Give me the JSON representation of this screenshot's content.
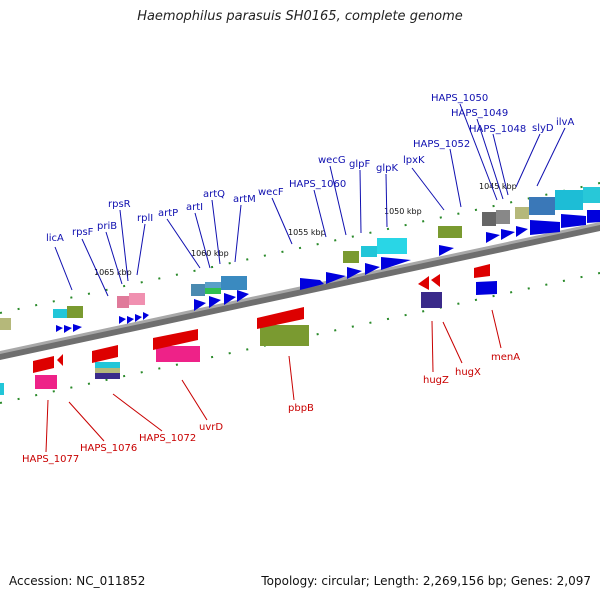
{
  "title": "Haemophilus parasuis SH0165, complete genome",
  "footer": {
    "accession": "Accession: NC_011852",
    "topology": "Topology: circular; Length: 2,269,156 bp; Genes: 2,097"
  },
  "kbp_marks": [
    "1065 kbp",
    "1060 kbp",
    "1055 kbp",
    "1050 kbp",
    "1045 kbp"
  ],
  "forward_genes": [
    "licA",
    "rpsF",
    "priB",
    "rpsR",
    "rplI",
    "artP",
    "artI",
    "artQ",
    "artM",
    "wecF",
    "HAPS_1060",
    "wecG",
    "glpF",
    "glpK",
    "lpxK",
    "HAPS_1052",
    "HAPS_1050",
    "HAPS_1049",
    "HAPS_1048",
    "slyD",
    "ilvA"
  ],
  "reverse_genes": [
    "HAPS_1077",
    "HAPS_1076",
    "HAPS_1072",
    "uvrD",
    "pbpB",
    "hugZ",
    "hugX",
    "menA"
  ],
  "colors": {
    "forward": "#0000dd",
    "reverse": "#dd0000",
    "backbone": "#808080"
  }
}
